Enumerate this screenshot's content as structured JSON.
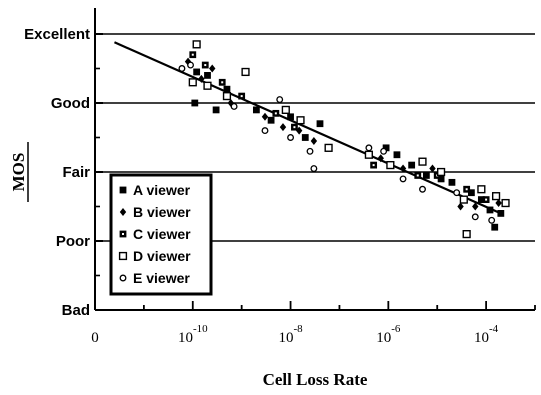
{
  "chart_data": {
    "type": "scatter",
    "title": "",
    "xlabel": "Cell Loss Rate",
    "ylabel": "MOS",
    "x_scale": "log",
    "xlim": [
      1e-12,
      0.001
    ],
    "ylim": [
      1,
      5
    ],
    "x_ticks": [
      {
        "value": 1e-12,
        "base": "0",
        "exp": ""
      },
      {
        "value": 1e-10,
        "base": "10",
        "exp": "-10"
      },
      {
        "value": 1e-08,
        "base": "10",
        "exp": "-8"
      },
      {
        "value": 1e-06,
        "base": "10",
        "exp": "-6"
      },
      {
        "value": 0.0001,
        "base": "10",
        "exp": "-4"
      }
    ],
    "y_ticks": [
      {
        "value": 5,
        "label": "Excellent"
      },
      {
        "value": 4,
        "label": "Good"
      },
      {
        "value": 3,
        "label": "Fair"
      },
      {
        "value": 2,
        "label": "Poor"
      },
      {
        "value": 1,
        "label": "Bad"
      }
    ],
    "grid": "horizontal",
    "legend_position": "lower-left",
    "trend_line": {
      "x": [
        2.5e-12,
        0.0002
      ],
      "y": [
        4.88,
        2.4
      ]
    },
    "series": [
      {
        "name": "A viewer",
        "marker": "filled-square",
        "points": [
          {
            "x": 1.2e-10,
            "y": 4.45
          },
          {
            "x": 2e-10,
            "y": 4.4
          },
          {
            "x": 1.1e-10,
            "y": 4.0
          },
          {
            "x": 3e-10,
            "y": 3.9
          },
          {
            "x": 5e-10,
            "y": 4.2
          },
          {
            "x": 2e-09,
            "y": 3.9
          },
          {
            "x": 4e-09,
            "y": 3.75
          },
          {
            "x": 1e-08,
            "y": 3.8
          },
          {
            "x": 2e-08,
            "y": 3.5
          },
          {
            "x": 4e-08,
            "y": 3.7
          },
          {
            "x": 9e-07,
            "y": 3.35
          },
          {
            "x": 1.5e-06,
            "y": 3.25
          },
          {
            "x": 3e-06,
            "y": 3.1
          },
          {
            "x": 6e-06,
            "y": 2.95
          },
          {
            "x": 1.2e-05,
            "y": 2.9
          },
          {
            "x": 2e-05,
            "y": 2.85
          },
          {
            "x": 5e-05,
            "y": 2.7
          },
          {
            "x": 8e-05,
            "y": 2.6
          },
          {
            "x": 0.00015,
            "y": 2.2
          },
          {
            "x": 0.00012,
            "y": 2.45
          },
          {
            "x": 0.0002,
            "y": 2.4
          }
        ]
      },
      {
        "name": "B viewer",
        "marker": "filled-diamond",
        "points": [
          {
            "x": 8e-11,
            "y": 4.6
          },
          {
            "x": 1.5e-10,
            "y": 4.35
          },
          {
            "x": 2.5e-10,
            "y": 4.5
          },
          {
            "x": 6e-10,
            "y": 4.0
          },
          {
            "x": 3e-09,
            "y": 3.8
          },
          {
            "x": 7e-09,
            "y": 3.65
          },
          {
            "x": 1.5e-08,
            "y": 3.6
          },
          {
            "x": 3e-08,
            "y": 3.45
          },
          {
            "x": 7e-07,
            "y": 3.2
          },
          {
            "x": 2e-06,
            "y": 3.05
          },
          {
            "x": 8e-06,
            "y": 3.05
          },
          {
            "x": 3e-05,
            "y": 2.5
          },
          {
            "x": 6e-05,
            "y": 2.5
          },
          {
            "x": 0.00018,
            "y": 2.55
          }
        ]
      },
      {
        "name": "C viewer",
        "marker": "square-with-dot",
        "points": [
          {
            "x": 1e-10,
            "y": 4.7
          },
          {
            "x": 1.8e-10,
            "y": 4.55
          },
          {
            "x": 4e-10,
            "y": 4.3
          },
          {
            "x": 1e-09,
            "y": 4.1
          },
          {
            "x": 5e-09,
            "y": 3.85
          },
          {
            "x": 1.2e-08,
            "y": 3.65
          },
          {
            "x": 5e-07,
            "y": 3.1
          },
          {
            "x": 4e-06,
            "y": 2.95
          },
          {
            "x": 1e-05,
            "y": 2.95
          },
          {
            "x": 4e-05,
            "y": 2.75
          },
          {
            "x": 0.0001,
            "y": 2.6
          }
        ]
      },
      {
        "name": "D viewer",
        "marker": "open-square",
        "points": [
          {
            "x": 1.2e-10,
            "y": 4.85
          },
          {
            "x": 1e-10,
            "y": 4.3
          },
          {
            "x": 2e-10,
            "y": 4.25
          },
          {
            "x": 5e-10,
            "y": 4.1
          },
          {
            "x": 1.2e-09,
            "y": 4.45
          },
          {
            "x": 8e-09,
            "y": 3.9
          },
          {
            "x": 1.6e-08,
            "y": 3.75
          },
          {
            "x": 6e-08,
            "y": 3.35
          },
          {
            "x": 4e-07,
            "y": 3.25
          },
          {
            "x": 1.1e-06,
            "y": 3.1
          },
          {
            "x": 5e-06,
            "y": 3.15
          },
          {
            "x": 1.2e-05,
            "y": 3.0
          },
          {
            "x": 3.5e-05,
            "y": 2.6
          },
          {
            "x": 4e-05,
            "y": 2.1
          },
          {
            "x": 8e-05,
            "y": 2.75
          },
          {
            "x": 0.00016,
            "y": 2.65
          },
          {
            "x": 0.00025,
            "y": 2.55
          }
        ]
      },
      {
        "name": "E viewer",
        "marker": "open-circle",
        "points": [
          {
            "x": 6e-11,
            "y": 4.5
          },
          {
            "x": 9e-11,
            "y": 4.55
          },
          {
            "x": 7e-10,
            "y": 3.95
          },
          {
            "x": 3e-09,
            "y": 3.6
          },
          {
            "x": 6e-09,
            "y": 4.05
          },
          {
            "x": 1e-08,
            "y": 3.5
          },
          {
            "x": 2.5e-08,
            "y": 3.3
          },
          {
            "x": 3e-08,
            "y": 3.05
          },
          {
            "x": 4e-07,
            "y": 3.35
          },
          {
            "x": 8e-07,
            "y": 3.3
          },
          {
            "x": 2e-06,
            "y": 2.9
          },
          {
            "x": 5e-06,
            "y": 2.75
          },
          {
            "x": 2.5e-05,
            "y": 2.7
          },
          {
            "x": 6e-05,
            "y": 2.35
          },
          {
            "x": 0.00013,
            "y": 2.3
          }
        ]
      }
    ]
  }
}
